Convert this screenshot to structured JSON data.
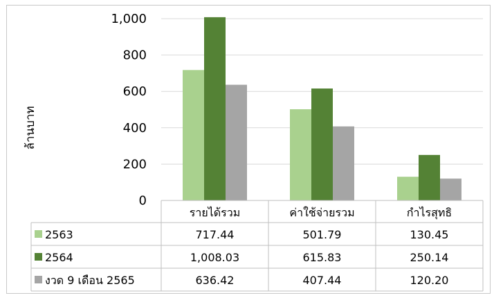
{
  "chart_data": {
    "type": "bar",
    "title": "",
    "ylabel": "ล้านบาท",
    "xlabel": "",
    "categories": [
      "รายได้รวม",
      "ค่าใช้จ่ายรวม",
      "กำไรสุทธิ"
    ],
    "series": [
      {
        "name": "2563",
        "values": [
          717.44,
          501.79,
          130.45
        ],
        "labels": [
          "717.44",
          "501.79",
          "130.45"
        ],
        "color": "#a9d18e"
      },
      {
        "name": "2564",
        "values": [
          1008.03,
          615.83,
          250.14
        ],
        "labels": [
          "1,008.03",
          "615.83",
          "250.14"
        ],
        "color": "#548235"
      },
      {
        "name": "งวด 9 เดือน 2565",
        "values": [
          636.42,
          407.44,
          120.2
        ],
        "labels": [
          "636.42",
          "407.44",
          "120.20"
        ],
        "color": "#a5a5a5"
      }
    ],
    "ylim": [
      0,
      1000
    ],
    "yticks": [
      0,
      200,
      400,
      600,
      800,
      1000
    ],
    "ytick_labels": [
      "0",
      "200",
      "400",
      "600",
      "800",
      "1,000"
    ],
    "grid": true,
    "legend": "data-table"
  }
}
